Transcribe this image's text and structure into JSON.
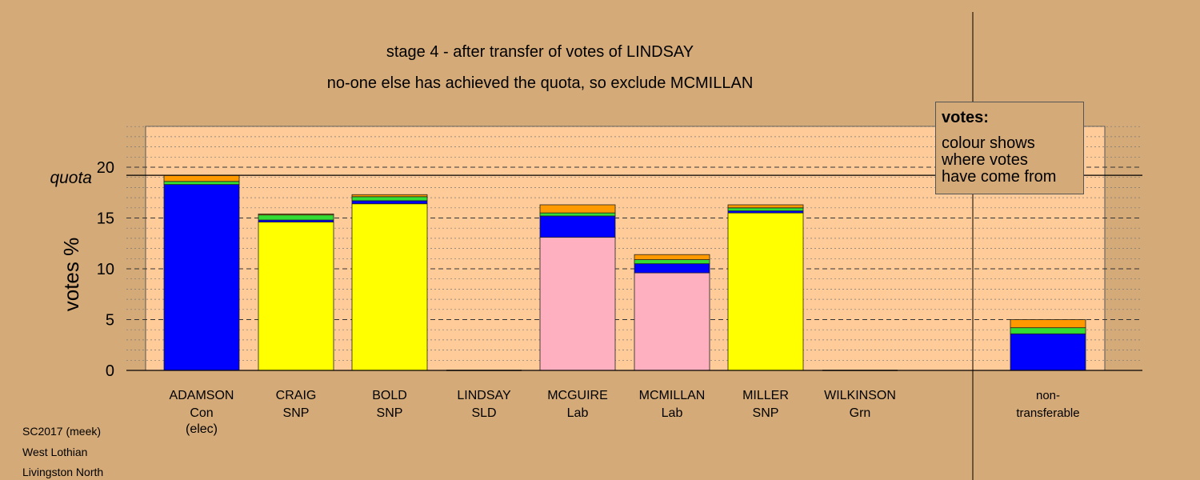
{
  "header": {
    "title": "stage 4 - after transfer of votes of LINDSAY",
    "subtitle": "no-one else has achieved the quota, so exclude MCMILLAN"
  },
  "legend": {
    "title": "votes:",
    "lines": [
      "colour shows",
      "where votes",
      "have come from"
    ]
  },
  "footer": {
    "line1": "SC2017 (meek)",
    "line2": "West Lothian",
    "line3": "Livingston North"
  },
  "colors": {
    "Con": "#0000ff",
    "SNP": "#ffff00",
    "Lab": "#ffb0c0",
    "SLD": "#ff9900",
    "Grn": "#33dd33",
    "background": "#d4aa78",
    "plot_area": "#ffcc99"
  },
  "chart_data": {
    "type": "bar",
    "stacked": true,
    "ylabel": "votes %",
    "ylim": [
      0,
      24
    ],
    "yticks": [
      0,
      5,
      10,
      15,
      20
    ],
    "quota": 19.2,
    "quota_label": "quota",
    "grid": true,
    "categories": [
      {
        "name": "ADAMSON",
        "party": "Con",
        "note": "(elec)"
      },
      {
        "name": "CRAIG",
        "party": "SNP"
      },
      {
        "name": "BOLD",
        "party": "SNP"
      },
      {
        "name": "LINDSAY",
        "party": "SLD"
      },
      {
        "name": "MCGUIRE",
        "party": "Lab"
      },
      {
        "name": "MCMILLAN",
        "party": "Lab"
      },
      {
        "name": "MILLER",
        "party": "SNP"
      },
      {
        "name": "WILKINSON",
        "party": "Grn"
      },
      {
        "name": "non-",
        "party": "transferable"
      }
    ],
    "segments": [
      [
        {
          "color": "Con",
          "value": 18.3
        },
        {
          "color": "Grn",
          "value": 0.3
        },
        {
          "color": "SLD",
          "value": 0.6
        }
      ],
      [
        {
          "color": "SNP",
          "value": 14.6
        },
        {
          "color": "Con",
          "value": 0.2
        },
        {
          "color": "Grn",
          "value": 0.5
        },
        {
          "color": "SLD",
          "value": 0.1
        }
      ],
      [
        {
          "color": "SNP",
          "value": 16.4
        },
        {
          "color": "Con",
          "value": 0.3
        },
        {
          "color": "Grn",
          "value": 0.4
        },
        {
          "color": "SLD",
          "value": 0.2
        }
      ],
      [],
      [
        {
          "color": "Lab",
          "value": 13.1
        },
        {
          "color": "Con",
          "value": 2.1
        },
        {
          "color": "Grn",
          "value": 0.3
        },
        {
          "color": "SLD",
          "value": 0.8
        }
      ],
      [
        {
          "color": "Lab",
          "value": 9.6
        },
        {
          "color": "Con",
          "value": 0.9
        },
        {
          "color": "Grn",
          "value": 0.4
        },
        {
          "color": "SLD",
          "value": 0.5
        }
      ],
      [
        {
          "color": "SNP",
          "value": 15.5
        },
        {
          "color": "Con",
          "value": 0.2
        },
        {
          "color": "Grn",
          "value": 0.3
        },
        {
          "color": "SLD",
          "value": 0.3
        }
      ],
      [],
      [
        {
          "color": "Con",
          "value": 3.6
        },
        {
          "color": "Grn",
          "value": 0.6
        },
        {
          "color": "SLD",
          "value": 0.8
        }
      ]
    ]
  }
}
